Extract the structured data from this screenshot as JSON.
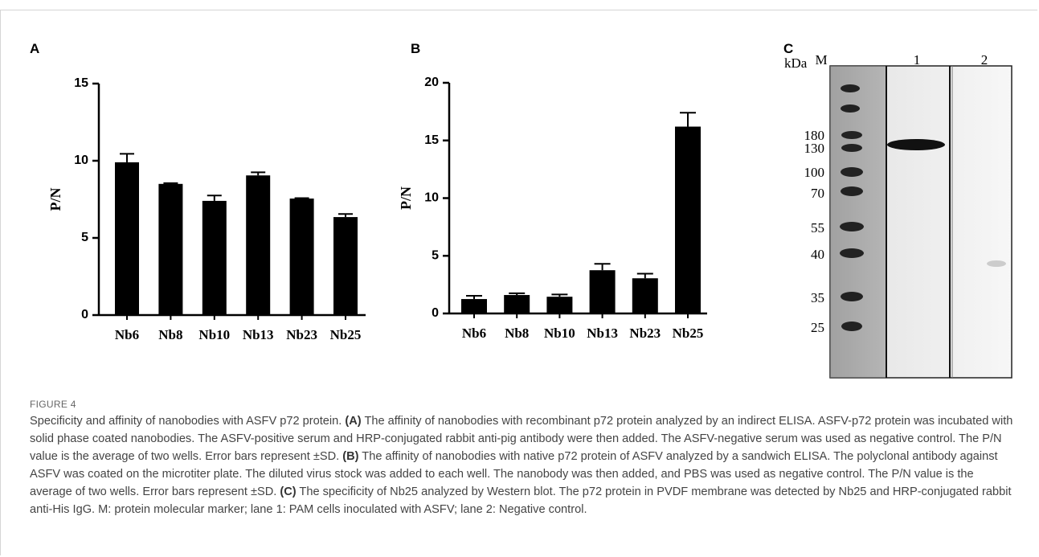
{
  "chart_data": [
    {
      "type": "bar",
      "panel": "A",
      "ylabel": "P/N",
      "categories": [
        "Nb6",
        "Nb8",
        "Nb10",
        "Nb13",
        "Nb23",
        "Nb25"
      ],
      "values": [
        9.9,
        8.5,
        7.4,
        9.05,
        7.55,
        6.35
      ],
      "errors": [
        0.55,
        0.05,
        0.35,
        0.2,
        0.03,
        0.2
      ],
      "color": "#000000",
      "ylim": [
        0,
        15
      ],
      "yticks": [
        0,
        5,
        10,
        15
      ]
    },
    {
      "type": "bar",
      "panel": "B",
      "ylabel": "P/N",
      "categories": [
        "Nb6",
        "Nb8",
        "Nb10",
        "Nb13",
        "Nb23",
        "Nb25"
      ],
      "values": [
        1.25,
        1.6,
        1.45,
        3.75,
        3.05,
        16.2
      ],
      "errors": [
        0.28,
        0.15,
        0.2,
        0.55,
        0.4,
        1.2
      ],
      "color": "#000000",
      "ylim": [
        0,
        20
      ],
      "yticks": [
        0,
        5,
        10,
        15,
        20
      ]
    }
  ],
  "blot": {
    "panel": "C",
    "unit": "kDa",
    "lanes": [
      "M",
      "1",
      "2"
    ],
    "markers": [
      "180",
      "130",
      "100",
      "70",
      "55",
      "40",
      "35",
      "25"
    ]
  },
  "figure": {
    "label": "FIGURE 4",
    "caption": [
      "Specificity and affinity of nanobodies with ASFV p72 protein. ",
      "(A)",
      " The affinity of nanobodies with recombinant p72 protein analyzed by an indirect ELISA. ASFV-p72 protein was incubated with solid phase coated nanobodies. The ASFV-positive serum and HRP-conjugated rabbit anti-pig antibody were then added. The ASFV-negative serum was used as negative control. The P/N value is the average of two wells. Error bars represent ±SD. ",
      "(B)",
      " The affinity of nanobodies with native p72 protein of ASFV analyzed by a sandwich ELISA. The polyclonal antibody against ASFV was coated on the microtiter plate. The diluted virus stock was added to each well. The nanobody was then added, and PBS was used as negative control. The P/N value is the average of two wells. Error bars represent ±SD. ",
      "(C)",
      " The specificity of Nb25 analyzed by Western blot. The p72 protein in PVDF membrane was detected by Nb25 and HRP-conjugated rabbit anti-His IgG. M: protein molecular marker; lane 1: PAM cells inoculated with ASFV; lane 2: Negative control."
    ]
  }
}
